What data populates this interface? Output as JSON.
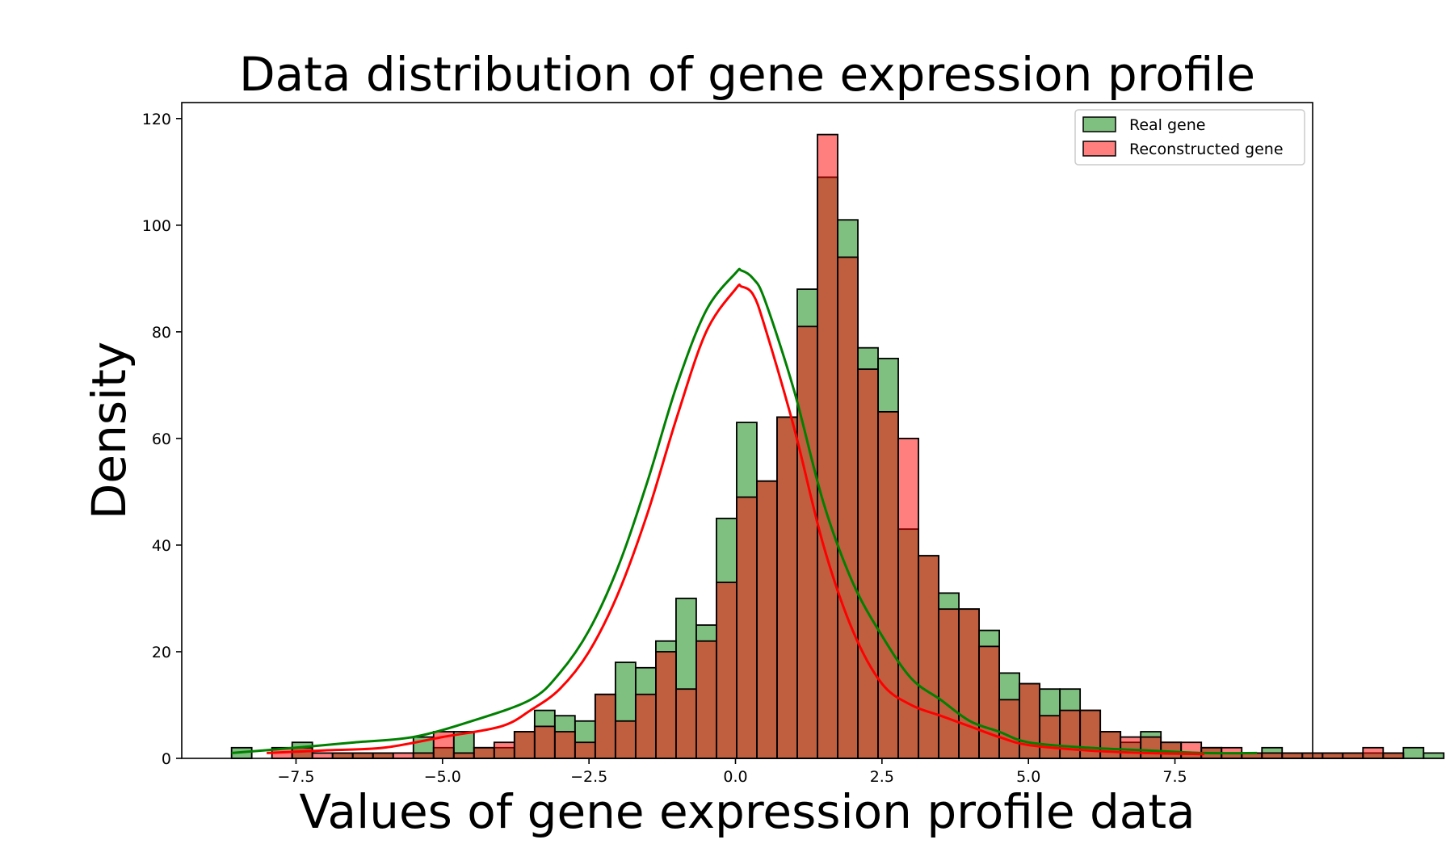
{
  "chart_data": {
    "type": "bar",
    "title": "Data distribution of gene expression profile",
    "xlabel": "Values of gene expression profile data",
    "ylabel": "Density",
    "xlim": [
      -9.45,
      9.85
    ],
    "ylim": [
      0,
      123
    ],
    "x_ticks": [
      -7.5,
      -5.0,
      -2.5,
      0.0,
      2.5,
      5.0,
      7.5
    ],
    "x_tick_labels": [
      "−7.5",
      "−5.0",
      "−2.5",
      "0.0",
      "2.5",
      "5.0",
      "7.5"
    ],
    "y_ticks": [
      0,
      20,
      40,
      60,
      80,
      100,
      120
    ],
    "y_tick_labels": [
      "0",
      "20",
      "40",
      "60",
      "80",
      "100",
      "120"
    ],
    "grid": false,
    "legend_position": "top-right",
    "series": [
      {
        "name": "Real gene",
        "color": "#008000",
        "bin_start": -8.6,
        "bin_width": 0.3448,
        "values": [
          2,
          0,
          0,
          3,
          0,
          1,
          1,
          1,
          0,
          4,
          2,
          5,
          2,
          2,
          5,
          9,
          8,
          7,
          12,
          18,
          17,
          22,
          30,
          25,
          45,
          63,
          52,
          64,
          88,
          109,
          101,
          77,
          75,
          43,
          38,
          31,
          28,
          24,
          16,
          14,
          13,
          13,
          9,
          5,
          3,
          5,
          3,
          1,
          2,
          1,
          1,
          2,
          1,
          1,
          1,
          1,
          1,
          1,
          2,
          1
        ],
        "kde_x": [
          -8.6,
          -7.5,
          -6.5,
          -5.5,
          -4.5,
          -3.5,
          -3.0,
          -2.5,
          -2.0,
          -1.5,
          -1.0,
          -0.5,
          0.0,
          0.1,
          0.3,
          0.5,
          1.0,
          1.5,
          2.0,
          2.5,
          3.0,
          3.5,
          4.0,
          4.5,
          5.0,
          6.0,
          7.0,
          8.0,
          8.9
        ],
        "kde_y": [
          1,
          2,
          3,
          4,
          7,
          11,
          16,
          24,
          36,
          52,
          70,
          84,
          91,
          91.5,
          90,
          86,
          69,
          48,
          33,
          23,
          15,
          11,
          7,
          5,
          3,
          2,
          1.5,
          1,
          1
        ]
      },
      {
        "name": "Reconstructed gene",
        "color": "#ff0000",
        "bin_start": -8.6,
        "bin_width": 0.3448,
        "values": [
          0,
          0,
          2,
          2,
          1,
          1,
          1,
          1,
          1,
          1,
          5,
          1,
          2,
          3,
          5,
          6,
          5,
          3,
          12,
          7,
          12,
          20,
          13,
          22,
          33,
          49,
          52,
          64,
          81,
          117,
          94,
          73,
          65,
          60,
          38,
          28,
          28,
          21,
          11,
          14,
          8,
          9,
          9,
          5,
          4,
          4,
          3,
          3,
          2,
          2,
          1,
          1,
          1,
          1,
          1,
          1,
          2,
          1,
          0,
          0
        ],
        "kde_x": [
          -8.0,
          -7.0,
          -6.0,
          -5.0,
          -4.0,
          -3.5,
          -3.0,
          -2.5,
          -2.0,
          -1.5,
          -1.0,
          -0.5,
          0.0,
          0.1,
          0.3,
          0.5,
          1.0,
          1.5,
          2.0,
          2.5,
          3.0,
          3.5,
          4.0,
          4.5,
          5.0,
          6.0,
          7.0,
          8.0
        ],
        "kde_y": [
          1,
          1.5,
          2,
          4,
          6,
          9,
          13,
          20,
          31,
          46,
          64,
          80,
          88,
          88.5,
          87,
          81,
          62,
          40,
          24,
          14,
          10,
          8,
          6,
          4,
          2.5,
          1.5,
          1,
          0.8
        ]
      }
    ]
  }
}
